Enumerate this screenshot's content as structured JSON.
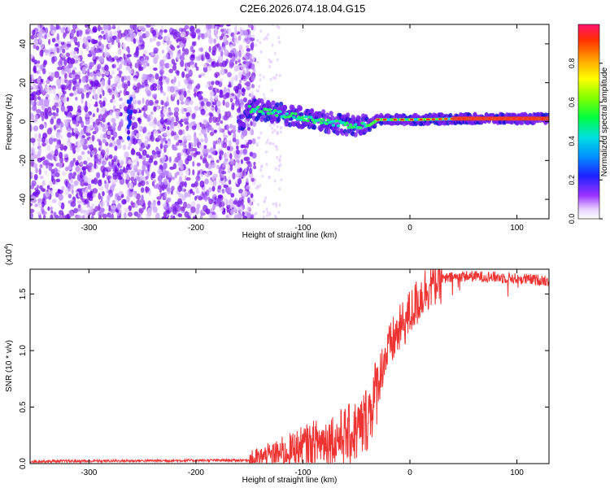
{
  "title": "C2E6.2026.074.18.04.G15",
  "chart_data": [
    {
      "type": "heatmap",
      "xlabel": "Height of straight line (km)",
      "ylabel": "Frequency (Hz)",
      "xlim": [
        -355,
        130
      ],
      "ylim": [
        -50,
        50
      ],
      "xticks": [
        -300,
        -200,
        -100,
        0,
        100
      ],
      "yticks": [
        -40,
        -20,
        0,
        20,
        40
      ],
      "colorbar": {
        "label": "Normalized spectral amplitude",
        "range": [
          0,
          1
        ],
        "ticks": [
          0.0,
          0.2,
          0.4,
          0.6,
          0.8
        ]
      },
      "ridge": {
        "description_points": [
          [
            -155,
            7
          ],
          [
            -130,
            5
          ],
          [
            -100,
            2
          ],
          [
            -70,
            -1
          ],
          [
            -50,
            -2
          ],
          [
            -38,
            -2
          ],
          [
            -30,
            1
          ],
          [
            0,
            1
          ],
          [
            50,
            1.5
          ],
          [
            130,
            1.5
          ]
        ]
      },
      "noise_region_x": [
        -355,
        -145
      ]
    },
    {
      "type": "line",
      "xlabel": "Height of straight line (km)",
      "ylabel": "SNR (10 * v/v)",
      "yexponent_label": "(x10",
      "yexponent_sup": "4",
      "yexponent_close": ")",
      "xlim": [
        -355,
        130
      ],
      "ylim": [
        0,
        1.72
      ],
      "xticks": [
        -300,
        -200,
        -100,
        0,
        100
      ],
      "yticks": [
        0.0,
        0.5,
        1.0,
        1.5
      ],
      "series": [
        {
          "name": "SNR",
          "color": "#ee3333",
          "trend": {
            "x": [
              -355,
              -150,
              -130,
              -110,
              -90,
              -70,
              -55,
              -45,
              -38,
              -32,
              -25,
              -15,
              -5,
              5,
              15,
              25,
              35,
              50,
              80,
              110,
              130
            ],
            "y": [
              0.02,
              0.03,
              0.07,
              0.12,
              0.18,
              0.22,
              0.26,
              0.32,
              0.45,
              0.62,
              0.9,
              1.1,
              1.25,
              1.4,
              1.55,
              1.62,
              1.64,
              1.66,
              1.65,
              1.63,
              1.62
            ]
          }
        }
      ]
    }
  ]
}
